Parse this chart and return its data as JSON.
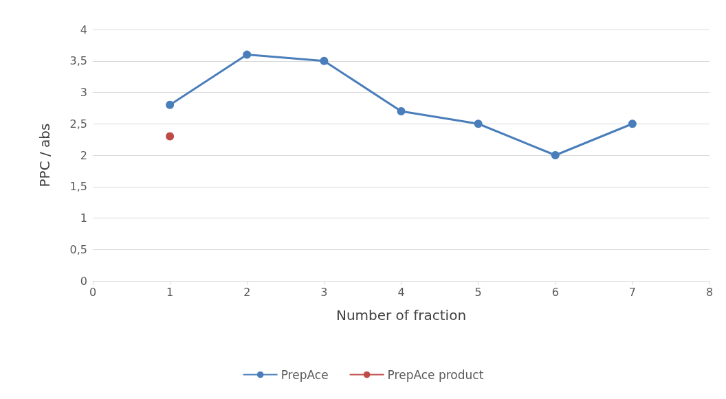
{
  "chart_data": {
    "type": "line",
    "xlabel": "Number of fraction",
    "ylabel": "PPC / abs",
    "series": [
      {
        "name": "PrepAce",
        "color": "#4a7ebb",
        "x": [
          1,
          2,
          3,
          4,
          5,
          6,
          7
        ],
        "values": [
          2.8,
          3.6,
          3.5,
          2.7,
          2.5,
          2.0,
          2.5
        ]
      },
      {
        "name": "PrepAce product",
        "color": "#be4b48",
        "x": [
          1
        ],
        "values": [
          2.3
        ]
      }
    ],
    "xlim": [
      0,
      8
    ],
    "xticks": [
      0,
      1,
      2,
      3,
      4,
      5,
      6,
      7,
      8
    ],
    "ylim": [
      0,
      4
    ],
    "yticks": [
      0,
      {
        "value": 0.5,
        "label": "0,5"
      },
      1,
      {
        "value": 1.5,
        "label": "1,5"
      },
      2,
      {
        "value": 2.5,
        "label": "2,5"
      },
      3,
      {
        "value": 3.5,
        "label": "3,5"
      },
      4
    ],
    "grid": "y",
    "legend": "bottom",
    "marker": "circle",
    "line_style": "solid"
  }
}
